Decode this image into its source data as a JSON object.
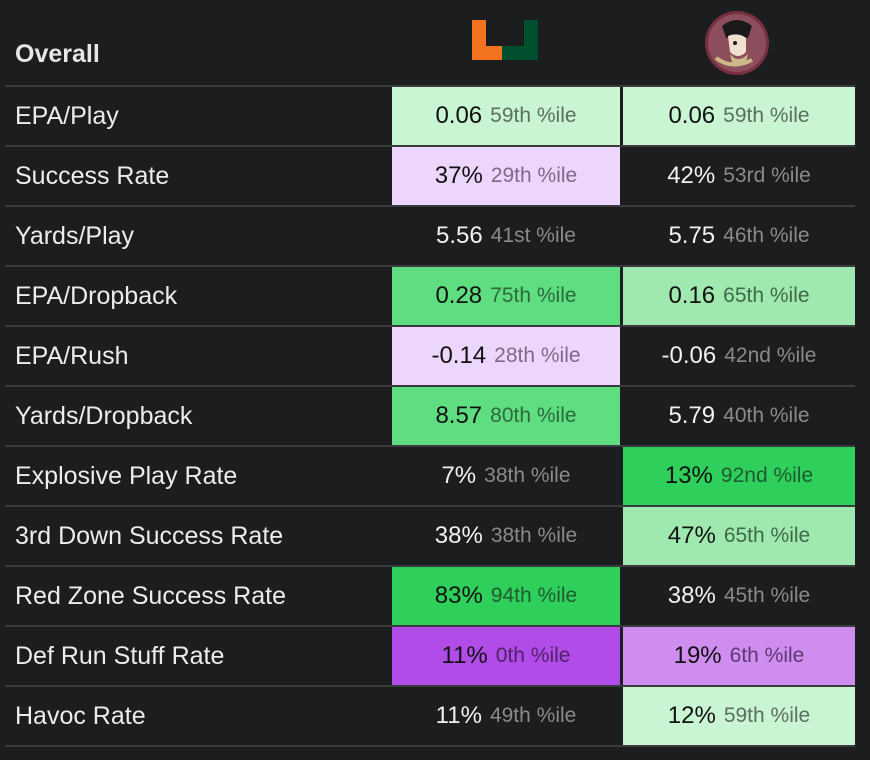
{
  "header": {
    "title": "Overall",
    "team1_logo": "miami-u-logo",
    "team2_logo": "fsu-seminole-logo",
    "team1_colors": {
      "orange": "#f47321",
      "green": "#005030"
    },
    "team2_colors": {
      "garnet": "#782f40",
      "gold": "#ceb888"
    }
  },
  "rows": [
    {
      "label": "EPA/Play",
      "t1": {
        "value": "0.06",
        "pct": "59th %ile",
        "shade": "bg-lg"
      },
      "t2": {
        "value": "0.06",
        "pct": "59th %ile",
        "shade": "bg-lg"
      }
    },
    {
      "label": "Success Rate",
      "t1": {
        "value": "37%",
        "pct": "29th %ile",
        "shade": "bg-lp"
      },
      "t2": {
        "value": "42%",
        "pct": "53rd %ile",
        "shade": "bg-none"
      }
    },
    {
      "label": "Yards/Play",
      "t1": {
        "value": "5.56",
        "pct": "41st %ile",
        "shade": "bg-none"
      },
      "t2": {
        "value": "5.75",
        "pct": "46th %ile",
        "shade": "bg-none"
      }
    },
    {
      "label": "EPA/Dropback",
      "t1": {
        "value": "0.28",
        "pct": "75th %ile",
        "shade": "bg-g"
      },
      "t2": {
        "value": "0.16",
        "pct": "65th %ile",
        "shade": "bg-mg"
      }
    },
    {
      "label": "EPA/Rush",
      "t1": {
        "value": "-0.14",
        "pct": "28th %ile",
        "shade": "bg-lp"
      },
      "t2": {
        "value": "-0.06",
        "pct": "42nd %ile",
        "shade": "bg-none"
      }
    },
    {
      "label": "Yards/Dropback",
      "t1": {
        "value": "8.57",
        "pct": "80th %ile",
        "shade": "bg-g"
      },
      "t2": {
        "value": "5.79",
        "pct": "40th %ile",
        "shade": "bg-none"
      }
    },
    {
      "label": "Explosive Play Rate",
      "t1": {
        "value": "7%",
        "pct": "38th %ile",
        "shade": "bg-none"
      },
      "t2": {
        "value": "13%",
        "pct": "92nd %ile",
        "shade": "bg-dg"
      }
    },
    {
      "label": "3rd Down Success Rate",
      "t1": {
        "value": "38%",
        "pct": "38th %ile",
        "shade": "bg-none"
      },
      "t2": {
        "value": "47%",
        "pct": "65th %ile",
        "shade": "bg-mg"
      }
    },
    {
      "label": "Red Zone Success Rate",
      "t1": {
        "value": "83%",
        "pct": "94th %ile",
        "shade": "bg-dg"
      },
      "t2": {
        "value": "38%",
        "pct": "45th %ile",
        "shade": "bg-none"
      }
    },
    {
      "label": "Def Run Stuff Rate",
      "t1": {
        "value": "11%",
        "pct": "0th %ile",
        "shade": "bg-dp"
      },
      "t2": {
        "value": "19%",
        "pct": "6th %ile",
        "shade": "bg-mp"
      }
    },
    {
      "label": "Havoc Rate",
      "t1": {
        "value": "11%",
        "pct": "49th %ile",
        "shade": "bg-none"
      },
      "t2": {
        "value": "12%",
        "pct": "59th %ile",
        "shade": "bg-lg"
      }
    }
  ]
}
